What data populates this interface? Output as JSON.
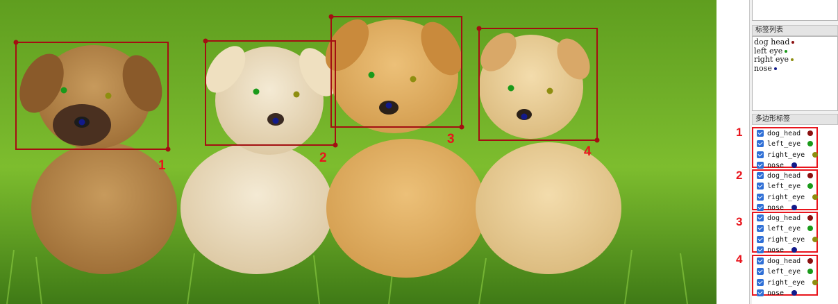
{
  "canvas": {
    "box_numbers": [
      "1",
      "2",
      "3",
      "4"
    ]
  },
  "panel": {
    "label_list_title": "标签列表",
    "label_list": [
      {
        "text": "dog head",
        "color": "#8b1010"
      },
      {
        "text": "left eye",
        "color": "#1a9a1a"
      },
      {
        "text": "right eye",
        "color": "#8e8e10"
      },
      {
        "text": "nose",
        "color": "#121a8a"
      }
    ],
    "polygon_title": "多边形标签",
    "groups": [
      {
        "number": "1",
        "items": [
          "dog_head",
          "left_eye",
          "right_eye",
          "nose"
        ]
      },
      {
        "number": "2",
        "items": [
          "dog_head",
          "left_eye",
          "right_eye",
          "nose"
        ]
      },
      {
        "number": "3",
        "items": [
          "dog_head",
          "left_eye",
          "right_eye",
          "nose"
        ]
      },
      {
        "number": "4",
        "items": [
          "dog_head",
          "left_eye",
          "right_eye",
          "nose"
        ]
      }
    ],
    "item_colors": [
      "#8b1010",
      "#1a9a1a",
      "#8e8e10",
      "#121a8a"
    ]
  }
}
